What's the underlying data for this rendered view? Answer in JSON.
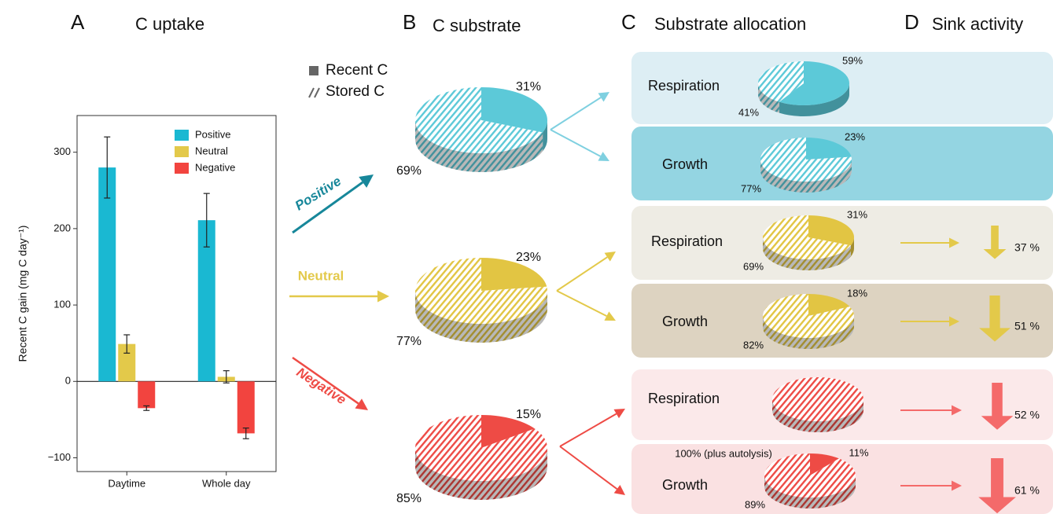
{
  "panels": [
    {
      "letter": "A",
      "title": "C uptake"
    },
    {
      "letter": "B",
      "title": "C substrate"
    },
    {
      "letter": "C",
      "title": "Substrate allocation"
    },
    {
      "letter": "D",
      "title": "Sink activity"
    }
  ],
  "legend": [
    "Recent C",
    "Stored C"
  ],
  "chart_data": [
    {
      "type": "bar",
      "ylabel": "Recent C gain (mg C day⁻¹)",
      "categories": [
        "Daytime",
        "Whole day"
      ],
      "series": [
        {
          "name": "Positive",
          "color": "#1ab8d2",
          "values": [
            280,
            211
          ],
          "errors": [
            40,
            35
          ]
        },
        {
          "name": "Neutral",
          "color": "#e3c94a",
          "values": [
            49,
            6
          ],
          "errors": [
            12,
            8
          ]
        },
        {
          "name": "Negative",
          "color": "#f2443f",
          "values": [
            -35,
            -68
          ],
          "errors": [
            3,
            7
          ]
        }
      ],
      "ylim": [
        -118,
        348
      ],
      "yticks": [
        {
          "value": -100,
          "label": "−100"
        },
        0,
        100,
        200,
        300
      ]
    },
    {
      "type": "pie",
      "color": "#5cc9d8",
      "values": [
        31,
        69
      ],
      "value_labels": [
        "31%",
        "69%"
      ]
    },
    {
      "type": "pie",
      "color": "#e2c543",
      "values": [
        23,
        77
      ],
      "value_labels": [
        "23%",
        "77%"
      ]
    },
    {
      "type": "pie",
      "color": "#ee4b45",
      "values": [
        15,
        85
      ],
      "value_labels": [
        "15%",
        "85%"
      ]
    },
    {
      "type": "pie",
      "label": "Respiration",
      "color": "#5cc9d8",
      "values": [
        59,
        41
      ],
      "value_labels": [
        "59%",
        "41%"
      ]
    },
    {
      "type": "pie",
      "label": "Growth",
      "color": "#5cc9d8",
      "values": [
        23,
        77
      ],
      "value_labels": [
        "23%",
        "77%"
      ]
    },
    {
      "type": "pie",
      "label": "Respiration",
      "color": "#e2c543",
      "values": [
        31,
        69
      ],
      "value_labels": [
        "31%",
        "69%"
      ]
    },
    {
      "type": "pie",
      "label": "Growth",
      "color": "#e2c543",
      "values": [
        18,
        82
      ],
      "value_labels": [
        "18%",
        "82%"
      ]
    },
    {
      "type": "pie",
      "label": "Respiration",
      "color": "#ee4b45",
      "values": [
        100
      ],
      "value_labels": [
        "100% (plus autolysis)"
      ]
    },
    {
      "type": "pie",
      "label": "Growth",
      "color": "#ee4b45",
      "values": [
        11,
        89
      ],
      "value_labels": [
        "11%",
        "89%"
      ]
    },
    {
      "type": "sink",
      "colors": [
        "#e3c94a",
        "#e3c94a",
        "#f46a6a",
        "#f46a6a"
      ],
      "values": [
        37,
        51,
        52,
        61
      ],
      "value_labels": [
        "37 %",
        "51 %",
        "52 %",
        "61 %"
      ]
    }
  ]
}
